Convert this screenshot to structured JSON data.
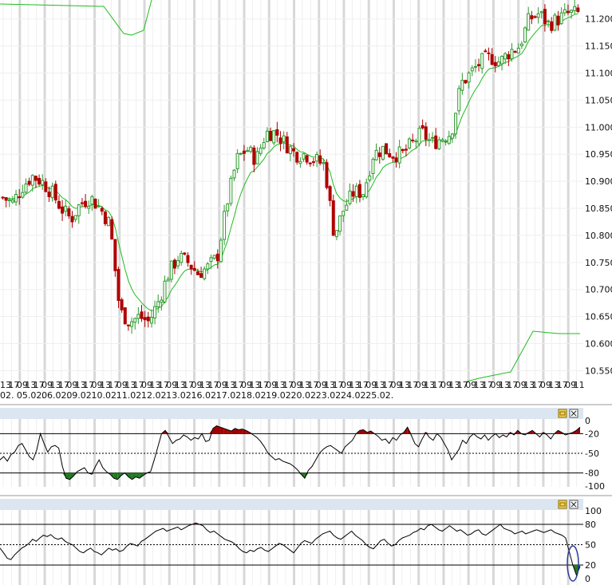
{
  "colors": {
    "up": "#2e9a2e",
    "down": "#b00000",
    "band": "#22bb22",
    "session_grid": "#d8d8d8",
    "light_grid": "#efefef",
    "panel_bar": "#dce6f0",
    "overbought_fill": "#a00000",
    "oversold_fill": "#1f7a1f",
    "line": "#000000",
    "highlight": "#2a3a9a"
  },
  "icons": [
    "maximize-icon",
    "close-icon"
  ],
  "chart_data": [
    {
      "type": "candlestick",
      "title": "",
      "ylim": [
        10.53,
        11.235
      ],
      "y_ticks": [
        "11.200",
        "11.150",
        "11.100",
        "11.050",
        "11.000",
        "10.950",
        "10.900",
        "10.850",
        "10.800",
        "10.750",
        "10.700",
        "10.650",
        "10.600",
        "10.550"
      ],
      "session_labels": [
        "13",
        "17",
        "09",
        "13",
        "17",
        "09",
        "13",
        "17",
        "09",
        "13",
        "17",
        "09",
        "13",
        "17",
        "09",
        "13",
        "17",
        "09",
        "13",
        "17",
        "09",
        "13",
        "17",
        "09",
        "13",
        "17",
        "09",
        "13",
        "17",
        "09",
        "13",
        "17",
        "09",
        "13",
        "17",
        "09",
        "13",
        "17",
        "09",
        "13",
        "17",
        "09",
        "13",
        "17",
        "09",
        "13",
        "17",
        "09",
        "13",
        "17",
        "09",
        "13",
        "17",
        "09",
        "13",
        "17",
        "09",
        "13",
        "17",
        "09",
        "13",
        "17",
        "09",
        "13",
        "17",
        "09",
        "13",
        "17",
        "09",
        "11"
      ],
      "dates": [
        "02.",
        "05.02.",
        "06.02.",
        "09.02.",
        "10.02.",
        "11.02.",
        "12.02.",
        "13.02.",
        "16.02.",
        "17.02.",
        "18.02.",
        "19.02.",
        "20.02.",
        "23.02.",
        "24.02.",
        "25.02."
      ],
      "close_path": [
        10.87,
        10.86,
        10.89,
        10.91,
        10.9,
        10.88,
        10.85,
        10.83,
        10.86,
        10.87,
        10.85,
        10.82,
        10.66,
        10.64,
        10.65,
        10.64,
        10.68,
        10.73,
        10.76,
        10.75,
        10.73,
        10.74,
        10.76,
        10.86,
        10.94,
        10.96,
        10.94,
        10.99,
        10.99,
        10.97,
        10.95,
        10.95,
        10.94,
        10.93,
        10.8,
        10.85,
        10.88,
        10.88,
        10.95,
        10.96,
        10.95,
        10.95,
        10.97,
        10.99,
        10.97,
        10.98,
        10.99,
        11.08,
        11.1,
        11.12,
        11.13,
        11.12,
        11.14,
        11.15,
        11.2,
        11.21,
        11.19,
        11.2,
        11.21,
        11.21
      ],
      "band": {
        "upper_visible": [
          11.235,
          11.23,
          11.21,
          11.205
        ],
        "lower_visible": [
          10.55,
          10.56,
          10.6,
          10.64,
          10.635
        ]
      }
    },
    {
      "type": "line",
      "title": "",
      "ylim": [
        -100,
        0
      ],
      "y_ticks": [
        "0",
        "-20",
        "-50",
        "-80",
        "-100"
      ],
      "levels": [
        -20,
        -50,
        -80
      ],
      "values": [
        -60,
        -55,
        -62,
        -52,
        -48,
        -38,
        -35,
        -45,
        -55,
        -60,
        -45,
        -20,
        -35,
        -48,
        -40,
        -38,
        -42,
        -70,
        -88,
        -90,
        -85,
        -78,
        -75,
        -72,
        -80,
        -82,
        -70,
        -60,
        -72,
        -78,
        -82,
        -88,
        -90,
        -84,
        -80,
        -86,
        -90,
        -86,
        -88,
        -84,
        -80,
        -78,
        -60,
        -40,
        -20,
        -15,
        -25,
        -35,
        -30,
        -28,
        -22,
        -25,
        -30,
        -26,
        -28,
        -20,
        -32,
        -30,
        -12,
        -8,
        -10,
        -12,
        -14,
        -16,
        -12,
        -14,
        -13,
        -15,
        -18,
        -22,
        -26,
        -32,
        -40,
        -50,
        -55,
        -60,
        -58,
        -62,
        -64,
        -66,
        -70,
        -75,
        -82,
        -88,
        -76,
        -70,
        -60,
        -50,
        -44,
        -40,
        -38,
        -42,
        -46,
        -50,
        -40,
        -35,
        -30,
        -20,
        -15,
        -14,
        -18,
        -16,
        -20,
        -24,
        -30,
        -28,
        -35,
        -26,
        -30,
        -22,
        -18,
        -10,
        -22,
        -35,
        -40,
        -28,
        -18,
        -26,
        -30,
        -20,
        -25,
        -35,
        -45,
        -60,
        -52,
        -44,
        -30,
        -35,
        -25,
        -20,
        -25,
        -28,
        -22,
        -30,
        -24,
        -20,
        -26,
        -22,
        -25,
        -18,
        -22,
        -15,
        -20,
        -22,
        -18,
        -15,
        -20,
        -25,
        -18,
        -22,
        -28,
        -20,
        -15,
        -18,
        -22,
        -20,
        -18,
        -15,
        -10
      ]
    },
    {
      "type": "line",
      "title": "",
      "ylim": [
        0,
        100
      ],
      "y_ticks": [
        "100",
        "80",
        "50",
        "20",
        "0"
      ],
      "levels": [
        80,
        50,
        20
      ],
      "values": [
        45,
        38,
        30,
        28,
        35,
        40,
        45,
        48,
        52,
        58,
        55,
        60,
        64,
        62,
        65,
        60,
        58,
        60,
        55,
        52,
        50,
        45,
        40,
        38,
        42,
        45,
        40,
        38,
        35,
        40,
        45,
        42,
        44,
        40,
        42,
        48,
        52,
        50,
        48,
        55,
        58,
        62,
        66,
        70,
        72,
        74,
        70,
        72,
        74,
        76,
        72,
        75,
        78,
        80,
        82,
        80,
        78,
        72,
        68,
        70,
        66,
        62,
        58,
        56,
        54,
        50,
        44,
        40,
        38,
        42,
        40,
        44,
        46,
        42,
        40,
        44,
        48,
        52,
        50,
        46,
        42,
        38,
        45,
        52,
        56,
        54,
        52,
        58,
        62,
        66,
        68,
        70,
        64,
        60,
        58,
        62,
        66,
        70,
        64,
        60,
        56,
        50,
        46,
        44,
        50,
        56,
        58,
        52,
        48,
        50,
        56,
        60,
        62,
        64,
        68,
        70,
        74,
        72,
        78,
        80,
        76,
        72,
        70,
        74,
        78,
        74,
        70,
        72,
        68,
        64,
        66,
        70,
        72,
        66,
        64,
        68,
        72,
        76,
        80,
        74,
        72,
        70,
        66,
        68,
        70,
        66,
        68,
        70,
        72,
        70,
        68,
        70,
        72,
        68,
        66,
        64,
        60,
        40,
        20,
        5,
        18
      ]
    }
  ]
}
